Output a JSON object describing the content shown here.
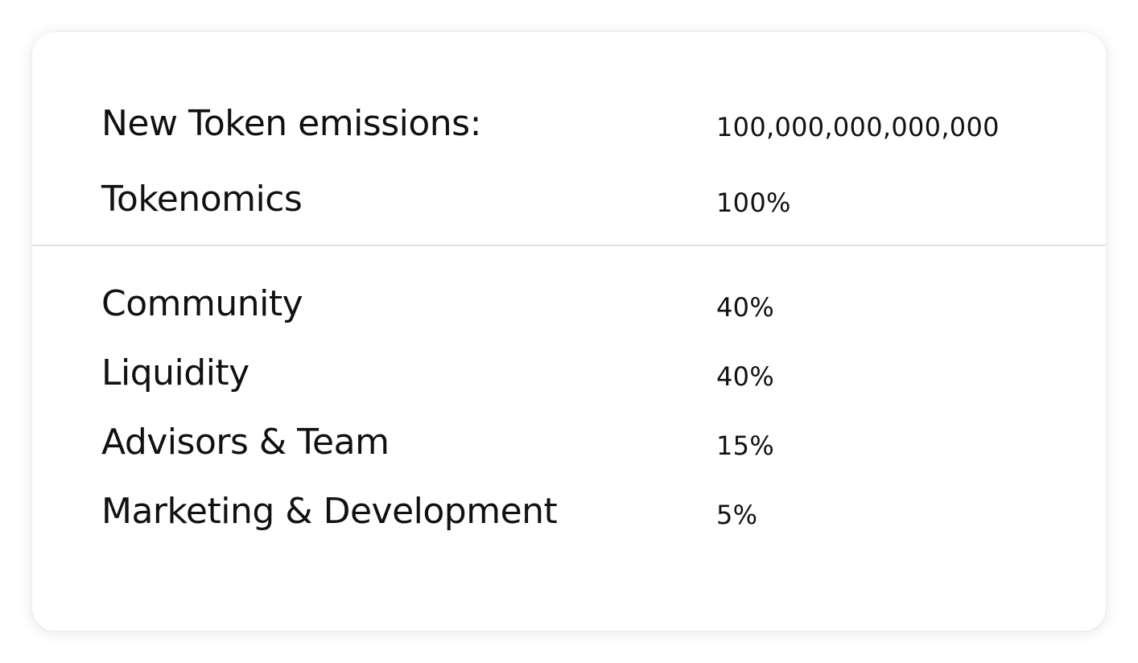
{
  "header_rows": [
    {
      "label": "New Token emissions:",
      "value": "100,000,000,000,000"
    },
    {
      "label": "Tokenomics",
      "value": "100%"
    }
  ],
  "allocation_rows": [
    {
      "label": "Community",
      "value": "40%"
    },
    {
      "label": "Liquidity",
      "value": "40%"
    },
    {
      "label": "Advisors & Team",
      "value": "15%"
    },
    {
      "label": "Marketing & Development",
      "value": "5%"
    }
  ]
}
